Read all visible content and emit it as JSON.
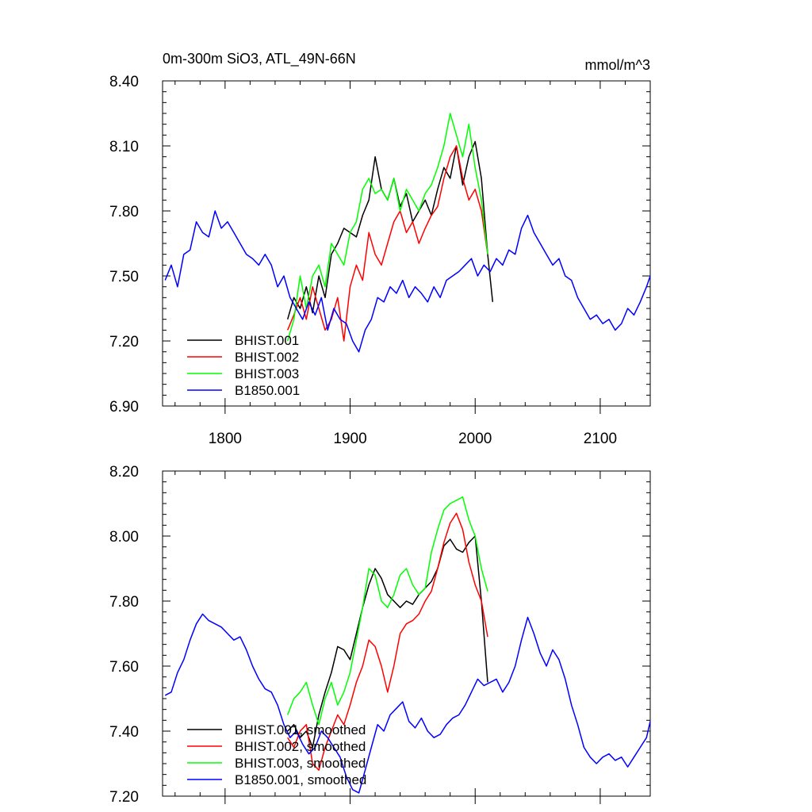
{
  "chart_data": [
    {
      "type": "line",
      "title": "0m-300m SiO3, ATL_49N-66N",
      "units": "mmol/m^3",
      "xlim": [
        1750,
        2140
      ],
      "ylim": [
        6.9,
        8.4
      ],
      "yticks": [
        "6.90",
        "7.20",
        "7.50",
        "7.80",
        "8.10",
        "8.40"
      ],
      "xticks": [
        "1800",
        "1900",
        "2000",
        "2100"
      ],
      "legend_position": "bottom-left",
      "series": [
        {
          "name": "BHIST.001",
          "color": "#000000",
          "x": [
            1850,
            1855,
            1860,
            1865,
            1870,
            1875,
            1880,
            1885,
            1890,
            1895,
            1900,
            1905,
            1910,
            1915,
            1920,
            1925,
            1930,
            1935,
            1940,
            1945,
            1950,
            1955,
            1960,
            1965,
            1970,
            1975,
            1980,
            1985,
            1990,
            1995,
            2000,
            2005,
            2010,
            2014
          ],
          "y": [
            7.3,
            7.4,
            7.35,
            7.45,
            7.33,
            7.5,
            7.4,
            7.6,
            7.65,
            7.72,
            7.7,
            7.68,
            7.78,
            7.85,
            8.05,
            7.9,
            7.85,
            7.95,
            7.82,
            7.88,
            7.75,
            7.8,
            7.85,
            7.78,
            7.9,
            8.0,
            7.95,
            8.1,
            7.92,
            8.05,
            8.12,
            7.95,
            7.6,
            7.38
          ]
        },
        {
          "name": "BHIST.002",
          "color": "#ff0000",
          "x": [
            1850,
            1855,
            1860,
            1865,
            1870,
            1875,
            1880,
            1885,
            1890,
            1895,
            1900,
            1905,
            1910,
            1915,
            1920,
            1925,
            1930,
            1935,
            1940,
            1945,
            1950,
            1955,
            1960,
            1965,
            1970,
            1975,
            1980,
            1985,
            1990,
            1995,
            2000,
            2005,
            2010
          ],
          "y": [
            7.25,
            7.32,
            7.4,
            7.3,
            7.45,
            7.35,
            7.25,
            7.3,
            7.4,
            7.2,
            7.45,
            7.55,
            7.48,
            7.7,
            7.6,
            7.55,
            7.65,
            7.75,
            7.8,
            7.7,
            7.75,
            7.65,
            7.72,
            7.78,
            7.82,
            7.95,
            8.05,
            8.1,
            7.95,
            7.85,
            7.9,
            7.8,
            7.6
          ]
        },
        {
          "name": "BHIST.003",
          "color": "#00ff00",
          "x": [
            1850,
            1855,
            1860,
            1865,
            1870,
            1875,
            1880,
            1885,
            1890,
            1895,
            1900,
            1905,
            1910,
            1915,
            1920,
            1925,
            1930,
            1935,
            1940,
            1945,
            1950,
            1955,
            1960,
            1965,
            1970,
            1975,
            1980,
            1985,
            1990,
            1995,
            2000,
            2005,
            2010
          ],
          "y": [
            7.2,
            7.3,
            7.5,
            7.35,
            7.5,
            7.55,
            7.45,
            7.65,
            7.6,
            7.55,
            7.7,
            7.75,
            7.9,
            7.95,
            7.88,
            7.9,
            7.85,
            7.95,
            7.8,
            7.9,
            7.85,
            7.8,
            7.88,
            7.92,
            8.0,
            8.1,
            8.25,
            8.15,
            8.05,
            8.2,
            8.0,
            7.85,
            7.6
          ]
        },
        {
          "name": "B1850.001",
          "color": "#0000ff",
          "x": [
            1752,
            1757,
            1762,
            1767,
            1772,
            1777,
            1782,
            1787,
            1792,
            1797,
            1802,
            1807,
            1812,
            1817,
            1822,
            1827,
            1832,
            1837,
            1842,
            1847,
            1852,
            1857,
            1862,
            1867,
            1872,
            1877,
            1882,
            1887,
            1892,
            1897,
            1902,
            1907,
            1912,
            1917,
            1922,
            1927,
            1932,
            1937,
            1942,
            1947,
            1952,
            1957,
            1962,
            1967,
            1972,
            1977,
            1982,
            1987,
            1992,
            1997,
            2002,
            2007,
            2012,
            2017,
            2022,
            2027,
            2032,
            2037,
            2042,
            2047,
            2052,
            2057,
            2062,
            2067,
            2072,
            2077,
            2082,
            2087,
            2092,
            2097,
            2102,
            2107,
            2112,
            2117,
            2122,
            2127,
            2132,
            2137,
            2140
          ],
          "y": [
            7.48,
            7.55,
            7.45,
            7.6,
            7.62,
            7.75,
            7.7,
            7.68,
            7.8,
            7.72,
            7.75,
            7.7,
            7.65,
            7.6,
            7.58,
            7.55,
            7.6,
            7.55,
            7.45,
            7.5,
            7.4,
            7.35,
            7.3,
            7.38,
            7.32,
            7.4,
            7.25,
            7.35,
            7.3,
            7.28,
            7.2,
            7.15,
            7.25,
            7.3,
            7.4,
            7.38,
            7.45,
            7.42,
            7.48,
            7.4,
            7.45,
            7.42,
            7.38,
            7.45,
            7.4,
            7.48,
            7.5,
            7.52,
            7.55,
            7.58,
            7.5,
            7.55,
            7.52,
            7.58,
            7.55,
            7.62,
            7.6,
            7.72,
            7.78,
            7.7,
            7.65,
            7.6,
            7.55,
            7.58,
            7.5,
            7.48,
            7.4,
            7.35,
            7.3,
            7.32,
            7.28,
            7.3,
            7.25,
            7.28,
            7.35,
            7.32,
            7.38,
            7.45,
            7.5
          ]
        }
      ]
    },
    {
      "type": "line",
      "xlim": [
        1750,
        2140
      ],
      "ylim": [
        7.2,
        8.2
      ],
      "yticks": [
        "7.20",
        "7.40",
        "7.60",
        "7.80",
        "8.00",
        "8.20"
      ],
      "legend_position": "bottom-left",
      "series": [
        {
          "name": "BHIST.001, smoothed",
          "color": "#000000",
          "x": [
            1850,
            1855,
            1860,
            1865,
            1870,
            1875,
            1880,
            1885,
            1890,
            1895,
            1900,
            1905,
            1910,
            1915,
            1920,
            1925,
            1930,
            1935,
            1940,
            1945,
            1950,
            1955,
            1960,
            1965,
            1970,
            1975,
            1980,
            1985,
            1990,
            1995,
            2000,
            2005,
            2010
          ],
          "y": [
            7.4,
            7.42,
            7.38,
            7.4,
            7.35,
            7.45,
            7.52,
            7.58,
            7.66,
            7.65,
            7.62,
            7.7,
            7.78,
            7.85,
            7.9,
            7.87,
            7.82,
            7.8,
            7.78,
            7.8,
            7.79,
            7.82,
            7.84,
            7.86,
            7.9,
            7.97,
            7.99,
            7.96,
            7.95,
            7.98,
            8.0,
            7.8,
            7.55
          ]
        },
        {
          "name": "BHIST.002, smoothed",
          "color": "#ff0000",
          "x": [
            1850,
            1855,
            1860,
            1865,
            1870,
            1875,
            1880,
            1885,
            1890,
            1895,
            1900,
            1905,
            1910,
            1915,
            1920,
            1925,
            1930,
            1935,
            1940,
            1945,
            1950,
            1955,
            1960,
            1965,
            1970,
            1975,
            1980,
            1985,
            1990,
            1995,
            2000,
            2005,
            2010
          ],
          "y": [
            7.38,
            7.35,
            7.4,
            7.42,
            7.3,
            7.28,
            7.35,
            7.4,
            7.45,
            7.42,
            7.48,
            7.55,
            7.6,
            7.68,
            7.66,
            7.6,
            7.52,
            7.6,
            7.7,
            7.73,
            7.74,
            7.76,
            7.8,
            7.83,
            7.9,
            7.98,
            8.04,
            8.07,
            8.02,
            7.92,
            7.85,
            7.8,
            7.69
          ]
        },
        {
          "name": "BHIST.003, smoothed",
          "color": "#00ff00",
          "x": [
            1850,
            1855,
            1860,
            1865,
            1870,
            1875,
            1880,
            1885,
            1890,
            1895,
            1900,
            1905,
            1910,
            1915,
            1920,
            1925,
            1930,
            1935,
            1940,
            1945,
            1950,
            1955,
            1960,
            1965,
            1970,
            1975,
            1980,
            1985,
            1990,
            1995,
            2000,
            2005,
            2010
          ],
          "y": [
            7.45,
            7.5,
            7.52,
            7.55,
            7.48,
            7.42,
            7.5,
            7.55,
            7.48,
            7.52,
            7.58,
            7.68,
            7.78,
            7.9,
            7.88,
            7.8,
            7.78,
            7.82,
            7.88,
            7.9,
            7.85,
            7.82,
            7.84,
            7.95,
            8.02,
            8.08,
            8.1,
            8.11,
            8.12,
            8.05,
            8.0,
            7.9,
            7.83
          ]
        },
        {
          "name": "B1850.001, smoothed",
          "color": "#0000ff",
          "x": [
            1752,
            1757,
            1762,
            1767,
            1772,
            1777,
            1782,
            1787,
            1792,
            1797,
            1802,
            1807,
            1812,
            1817,
            1822,
            1827,
            1832,
            1837,
            1842,
            1847,
            1852,
            1857,
            1862,
            1867,
            1872,
            1877,
            1882,
            1887,
            1892,
            1897,
            1902,
            1907,
            1912,
            1917,
            1922,
            1927,
            1932,
            1937,
            1942,
            1947,
            1952,
            1957,
            1962,
            1967,
            1972,
            1977,
            1982,
            1987,
            1992,
            1997,
            2002,
            2007,
            2012,
            2017,
            2022,
            2027,
            2032,
            2037,
            2042,
            2047,
            2052,
            2057,
            2062,
            2067,
            2072,
            2077,
            2082,
            2087,
            2092,
            2097,
            2102,
            2107,
            2112,
            2117,
            2122,
            2127,
            2132,
            2137,
            2140
          ],
          "y": [
            7.51,
            7.52,
            7.58,
            7.62,
            7.68,
            7.73,
            7.76,
            7.74,
            7.73,
            7.72,
            7.7,
            7.68,
            7.69,
            7.65,
            7.6,
            7.56,
            7.53,
            7.52,
            7.48,
            7.42,
            7.38,
            7.4,
            7.36,
            7.33,
            7.35,
            7.4,
            7.38,
            7.35,
            7.32,
            7.26,
            7.22,
            7.21,
            7.28,
            7.35,
            7.42,
            7.4,
            7.45,
            7.47,
            7.49,
            7.43,
            7.41,
            7.44,
            7.4,
            7.38,
            7.39,
            7.42,
            7.44,
            7.45,
            7.48,
            7.52,
            7.56,
            7.54,
            7.55,
            7.56,
            7.52,
            7.55,
            7.6,
            7.68,
            7.75,
            7.7,
            7.64,
            7.6,
            7.65,
            7.62,
            7.56,
            7.48,
            7.42,
            7.35,
            7.32,
            7.3,
            7.32,
            7.33,
            7.31,
            7.32,
            7.29,
            7.32,
            7.35,
            7.38,
            7.43
          ]
        }
      ]
    }
  ]
}
